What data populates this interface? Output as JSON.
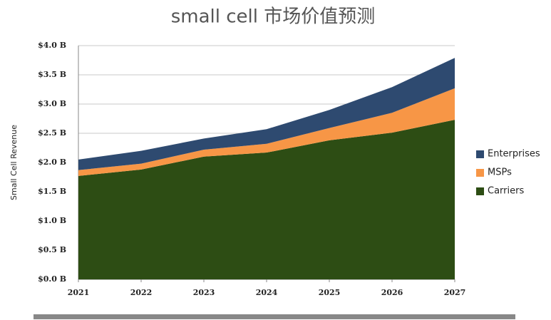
{
  "chart_data": {
    "type": "stacked_area",
    "title": "small cell 市场价值预测",
    "y_label": "Small Cell Revenue",
    "categories": [
      "2021",
      "2022",
      "2023",
      "2024",
      "2025",
      "2026",
      "2027"
    ],
    "series": [
      {
        "name": "Carriers",
        "color": "#2d4d14",
        "values": [
          1.77,
          1.88,
          2.1,
          2.17,
          2.38,
          2.51,
          2.73
        ]
      },
      {
        "name": "MSPs",
        "color": "#f79646",
        "values": [
          0.1,
          0.1,
          0.12,
          0.15,
          0.21,
          0.34,
          0.54
        ]
      },
      {
        "name": "Enterprises",
        "color": "#2e4a70",
        "values": [
          0.18,
          0.22,
          0.19,
          0.25,
          0.31,
          0.44,
          0.52
        ]
      }
    ],
    "ylim": [
      0,
      4
    ],
    "yticks": [
      {
        "value": 0,
        "label": "$0.0 B"
      },
      {
        "value": 0.5,
        "label": "$0.5 B"
      },
      {
        "value": 1,
        "label": "$1.0 B"
      },
      {
        "value": 1.5,
        "label": "$1.5 B"
      },
      {
        "value": 2,
        "label": "$2.0 B"
      },
      {
        "value": 2.5,
        "label": "$2.5 B"
      },
      {
        "value": 3,
        "label": "$3.0 B"
      },
      {
        "value": 3.5,
        "label": "$3.5 B"
      },
      {
        "value": 4,
        "label": "$4.0 B"
      }
    ],
    "grid": true,
    "legend": "right"
  }
}
